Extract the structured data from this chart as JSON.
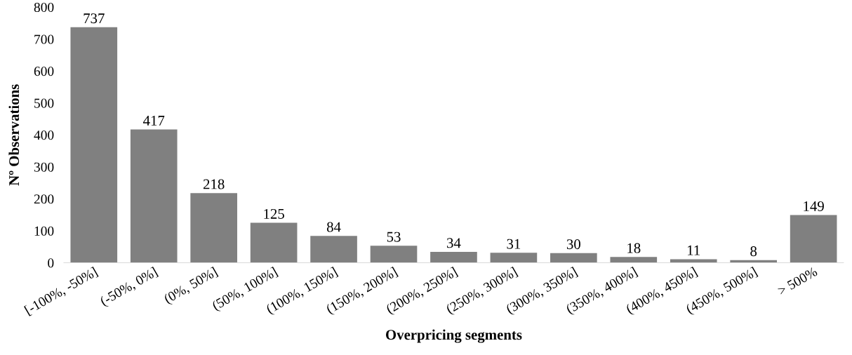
{
  "chart_data": {
    "type": "bar",
    "xlabel": "Overpricing segments",
    "ylabel": "Nº Observations",
    "categories": [
      "[-100%, -50%]",
      "(-50%, 0%]",
      "(0%, 50%]",
      "(50%, 100%]",
      "(100%, 150%]",
      "(150%, 200%]",
      "(200%, 250%]",
      "(250%, 300%]",
      "(300%, 350%]",
      "(350%, 400%]",
      "(400%, 450%]",
      "(450%, 500%]",
      "> 500%"
    ],
    "values": [
      737,
      417,
      218,
      125,
      84,
      53,
      34,
      31,
      30,
      18,
      11,
      8,
      149
    ],
    "color": "#808080",
    "ylim": [
      0,
      800
    ],
    "yticks": [
      0,
      100,
      200,
      300,
      400,
      500,
      600,
      700,
      800
    ],
    "data_labels": true,
    "grid": false,
    "legend": false
  }
}
